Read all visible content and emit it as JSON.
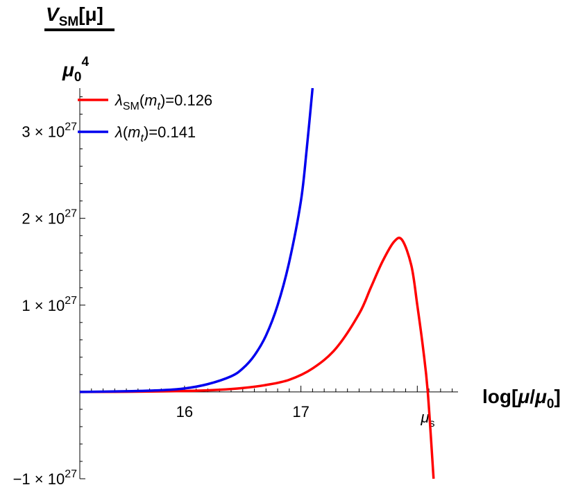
{
  "chart_data": {
    "type": "line",
    "ylabel": {
      "num_main": "V",
      "num_sub": "SM",
      "num_rest": "[μ]",
      "den_main": "μ",
      "den_sub": "0",
      "den_sup": "4"
    },
    "xlabel": {
      "prefix": "log[",
      "mu": "μ",
      "slash": "/",
      "mu0": "μ",
      "sub0": "0",
      "suffix": "]"
    },
    "xlim": [
      15.1,
      18.35
    ],
    "ylim": [
      -1e+27,
      3.5e+27
    ],
    "xticks": [
      {
        "value": 16,
        "label": "16"
      },
      {
        "value": 17,
        "label": "17"
      }
    ],
    "xtick_special": {
      "value": 18.09,
      "main": "μ",
      "sub": "s"
    },
    "yticks": [
      {
        "value": -1e+27,
        "mantissa": "−1",
        "times": "×",
        "base": "10",
        "exp": "27"
      },
      {
        "value": 1e+27,
        "mantissa": "1",
        "times": "×",
        "base": "10",
        "exp": "27"
      },
      {
        "value": 2e+27,
        "mantissa": "2",
        "times": "×",
        "base": "10",
        "exp": "27"
      },
      {
        "value": 3e+27,
        "mantissa": "3",
        "times": "×",
        "base": "10",
        "exp": "27"
      }
    ],
    "legend_position": "top-left",
    "series": [
      {
        "name": "λSM(mt)=0.126",
        "legend": {
          "lam": "λ",
          "sub": "SM",
          "open": "(",
          "m": "m",
          "msub": "t",
          "close": ")",
          "value": "=0.126"
        },
        "color": "#ff0000",
        "x": [
          15.1,
          15.5,
          16.0,
          16.3,
          16.5,
          16.7,
          16.9,
          17.1,
          17.3,
          17.5,
          17.6,
          17.7,
          17.8,
          17.87,
          17.95,
          18.0,
          18.05,
          18.09,
          18.14
        ],
        "y": [
          0,
          2e+24,
          1e+25,
          2.5e+25,
          4.5e+25,
          8e+25,
          1.4e+26,
          2.7e+26,
          5e+26,
          9e+26,
          1.2e+27,
          1.5e+27,
          1.73e+27,
          1.75e+27,
          1.45e+27,
          1e+27,
          5e+26,
          0.0,
          -1e+27
        ]
      },
      {
        "name": "λ(mt)=0.141",
        "legend": {
          "lam": "λ",
          "sub": "",
          "open": "(",
          "m": "m",
          "msub": "t",
          "close": ")",
          "value": "=0.141"
        },
        "color": "#0000ee",
        "x": [
          15.1,
          15.5,
          15.8,
          16.0,
          16.2,
          16.4,
          16.5,
          16.6,
          16.7,
          16.8,
          16.9,
          17.0,
          17.05,
          17.1
        ],
        "y": [
          0,
          8e+24,
          2e+25,
          4e+25,
          9e+25,
          1.8e+26,
          2.7e+26,
          4.2e+26,
          6.5e+26,
          1e+27,
          1.5e+27,
          2.2e+27,
          2.8e+27,
          3.5e+27
        ]
      }
    ]
  }
}
